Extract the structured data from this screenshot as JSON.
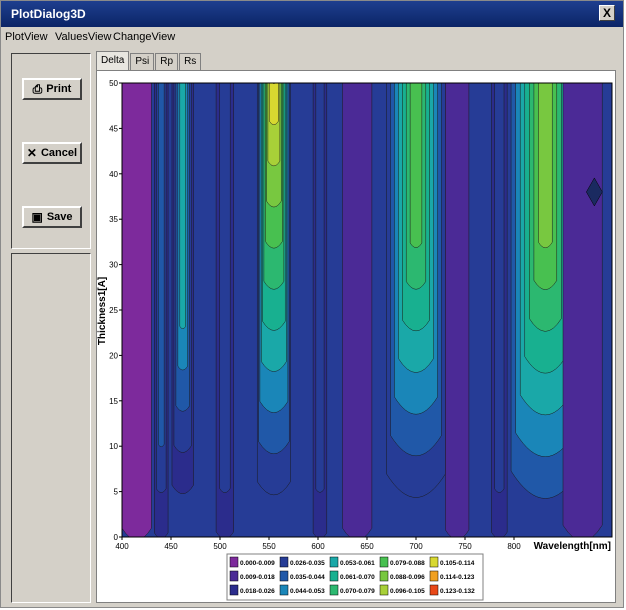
{
  "window": {
    "title": "PlotDialog3D",
    "close_label": "X"
  },
  "menu": [
    "PlotView",
    "ValuesView",
    "ChangeView"
  ],
  "buttons": {
    "print": "Print",
    "cancel": "Cancel",
    "save": "Save"
  },
  "tabs": [
    "Delta",
    "Psi",
    "Rp",
    "Rs"
  ],
  "active_tab": "Delta",
  "chart_data": {
    "type": "heatmap",
    "title": "",
    "xlabel": "Wavelength[nm]",
    "ylabel": "Thickness1[A]",
    "xlim": [
      400,
      900
    ],
    "ylim": [
      0,
      50
    ],
    "x_ticks": [
      "400",
      "450",
      "500",
      "550",
      "600",
      "650",
      "700",
      "750",
      "800"
    ],
    "y_ticks": [
      "0",
      "5",
      "10",
      "15",
      "20",
      "25",
      "30",
      "35",
      "40",
      "45",
      "50"
    ],
    "legend_placement": "bottom",
    "legend": [
      {
        "label": "0.000-0.009",
        "color": "#7d2a9c"
      },
      {
        "label": "0.009-0.018",
        "color": "#4b2a96"
      },
      {
        "label": "0.018-0.026",
        "color": "#2b2c8c"
      },
      {
        "label": "0.026-0.035",
        "color": "#263c96"
      },
      {
        "label": "0.035-0.044",
        "color": "#2058a8"
      },
      {
        "label": "0.044-0.053",
        "color": "#1a86b8"
      },
      {
        "label": "0.053-0.061",
        "color": "#1aa8a8"
      },
      {
        "label": "0.061-0.070",
        "color": "#18b090"
      },
      {
        "label": "0.070-0.079",
        "color": "#2cb870"
      },
      {
        "label": "0.079-0.088",
        "color": "#48c050"
      },
      {
        "label": "0.088-0.096",
        "color": "#78c840"
      },
      {
        "label": "0.096-0.105",
        "color": "#a8d038"
      },
      {
        "label": "0.105-0.114",
        "color": "#d8d830"
      },
      {
        "label": "0.114-0.123",
        "color": "#f0a020"
      },
      {
        "label": "0.123-0.132",
        "color": "#e84818"
      }
    ]
  }
}
